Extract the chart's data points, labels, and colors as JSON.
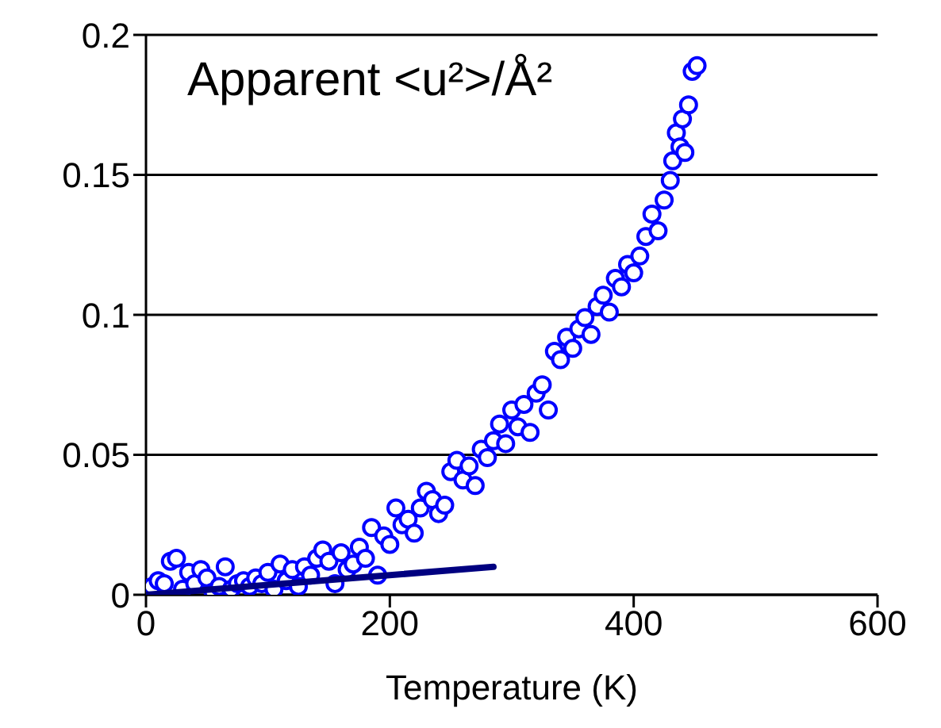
{
  "chart_data": {
    "type": "scatter",
    "xlabel": "Temperature (K)",
    "annotations": [
      "Apparent <u²>/Å²"
    ],
    "xlim": [
      0,
      600
    ],
    "xticks": [
      0,
      200,
      400,
      600
    ],
    "ylim": [
      0,
      0.2
    ],
    "yticks": [
      0,
      0.05,
      0.1,
      0.15,
      0.2
    ],
    "grid": "y",
    "marker": "circle",
    "series": [
      {
        "type": "scatter",
        "color": "#0000ff",
        "x": [
          5,
          10,
          15,
          20,
          25,
          30,
          35,
          40,
          45,
          50,
          55,
          60,
          65,
          70,
          75,
          80,
          85,
          90,
          95,
          100,
          105,
          110,
          115,
          120,
          125,
          130,
          135,
          140,
          145,
          150,
          155,
          160,
          165,
          170,
          175,
          180,
          185,
          190,
          195,
          200,
          205,
          210,
          215,
          220,
          225,
          230,
          235,
          240,
          245,
          250,
          255,
          260,
          265,
          270,
          275,
          280,
          285,
          290,
          295,
          300,
          305,
          310,
          315,
          320,
          325,
          330,
          335,
          340,
          345,
          350,
          355,
          360,
          365,
          370,
          375,
          380,
          385,
          390,
          395,
          400,
          405,
          410,
          415,
          420,
          425,
          430,
          432,
          435,
          438,
          440,
          442,
          445,
          448,
          452
        ],
        "values": [
          0.003,
          0.005,
          0.004,
          0.012,
          0.013,
          0.002,
          0.008,
          0.004,
          0.009,
          0.006,
          0.001,
          0.003,
          0.01,
          0.002,
          0.004,
          0.005,
          0.003,
          0.006,
          0.004,
          0.008,
          0.002,
          0.011,
          0.005,
          0.009,
          0.003,
          0.01,
          0.007,
          0.013,
          0.016,
          0.012,
          0.004,
          0.015,
          0.009,
          0.011,
          0.017,
          0.013,
          0.024,
          0.007,
          0.021,
          0.018,
          0.031,
          0.025,
          0.027,
          0.022,
          0.031,
          0.037,
          0.034,
          0.029,
          0.032,
          0.044,
          0.048,
          0.041,
          0.046,
          0.039,
          0.052,
          0.049,
          0.055,
          0.061,
          0.054,
          0.066,
          0.06,
          0.068,
          0.058,
          0.072,
          0.075,
          0.066,
          0.087,
          0.084,
          0.092,
          0.088,
          0.095,
          0.099,
          0.093,
          0.103,
          0.107,
          0.101,
          0.113,
          0.11,
          0.118,
          0.115,
          0.121,
          0.128,
          0.136,
          0.13,
          0.141,
          0.148,
          0.155,
          0.165,
          0.16,
          0.17,
          0.158,
          0.175,
          0.187,
          0.189
        ]
      },
      {
        "type": "line",
        "color": "#000080",
        "marker": "none",
        "line_style": "solid",
        "x": [
          0,
          285
        ],
        "values": [
          0,
          0.01
        ]
      }
    ]
  }
}
